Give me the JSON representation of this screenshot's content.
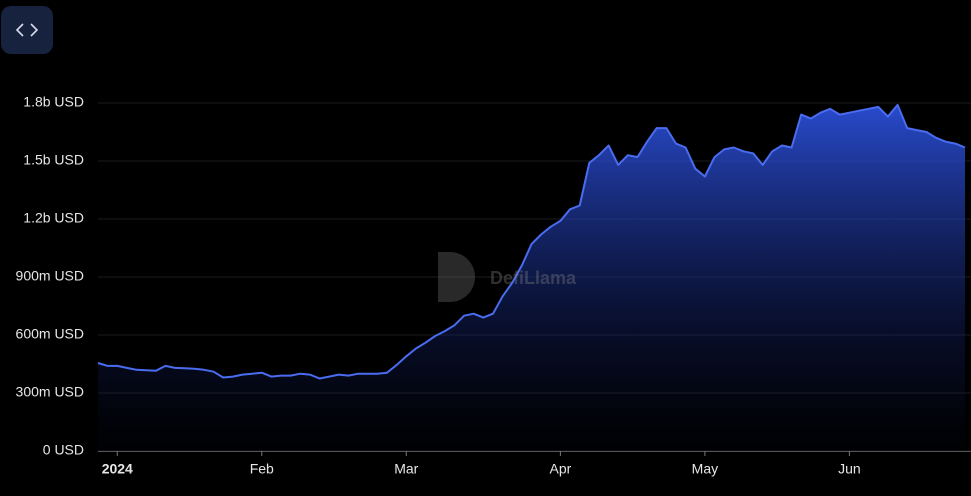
{
  "chart_data": {
    "type": "area",
    "watermark": "DefiLlama",
    "categories": [
      null,
      null,
      "2024",
      null,
      null,
      null,
      null,
      null,
      null,
      null,
      null,
      null,
      null,
      null,
      null,
      null,
      null,
      "Feb",
      null,
      null,
      null,
      null,
      null,
      null,
      null,
      null,
      null,
      null,
      null,
      null,
      null,
      null,
      "Mar",
      null,
      null,
      null,
      null,
      null,
      null,
      null,
      null,
      null,
      null,
      null,
      null,
      null,
      null,
      null,
      "Apr",
      null,
      null,
      null,
      null,
      null,
      null,
      null,
      null,
      null,
      null,
      null,
      null,
      null,
      null,
      "May",
      null,
      null,
      null,
      null,
      null,
      null,
      null,
      null,
      null,
      null,
      null,
      null,
      null,
      null,
      "Jun",
      null,
      null,
      null,
      null,
      null,
      null,
      null,
      null,
      null,
      null,
      null,
      null
    ],
    "series": [
      {
        "color": "#4a6cf0",
        "values": [
          455000000,
          440000000,
          440000000,
          430000000,
          420000000,
          418000000,
          415000000,
          440000000,
          430000000,
          428000000,
          425000000,
          420000000,
          410000000,
          380000000,
          385000000,
          395000000,
          400000000,
          405000000,
          385000000,
          390000000,
          390000000,
          400000000,
          395000000,
          375000000,
          385000000,
          395000000,
          390000000,
          400000000,
          400000000,
          400000000,
          405000000,
          445000000,
          490000000,
          530000000,
          560000000,
          595000000,
          620000000,
          650000000,
          700000000,
          710000000,
          690000000,
          710000000,
          800000000,
          870000000,
          960000000,
          1070000000,
          1120000000,
          1160000000,
          1190000000,
          1250000000,
          1270000000,
          1490000000,
          1530000000,
          1580000000,
          1480000000,
          1530000000,
          1520000000,
          1600000000,
          1670000000,
          1670000000,
          1590000000,
          1570000000,
          1460000000,
          1420000000,
          1520000000,
          1560000000,
          1570000000,
          1550000000,
          1540000000,
          1480000000,
          1550000000,
          1580000000,
          1570000000,
          1740000000,
          1720000000,
          1750000000,
          1770000000,
          1740000000,
          1750000000,
          1760000000,
          1770000000,
          1780000000,
          1730000000,
          1790000000,
          1670000000,
          1660000000,
          1650000000,
          1620000000,
          1600000000,
          1590000000,
          1570000000
        ]
      }
    ],
    "ylim": [
      0,
      1800000000
    ],
    "yticks": [
      {
        "value": 0,
        "label": "0 USD"
      },
      {
        "value": 300000000,
        "label": "300m USD"
      },
      {
        "value": 600000000,
        "label": "600m USD"
      },
      {
        "value": 900000000,
        "label": "900m USD"
      },
      {
        "value": 1200000000,
        "label": "1.2b USD"
      },
      {
        "value": 1500000000,
        "label": "1.5b USD"
      },
      {
        "value": 1800000000,
        "label": "1.8b USD"
      }
    ],
    "grid": true
  }
}
